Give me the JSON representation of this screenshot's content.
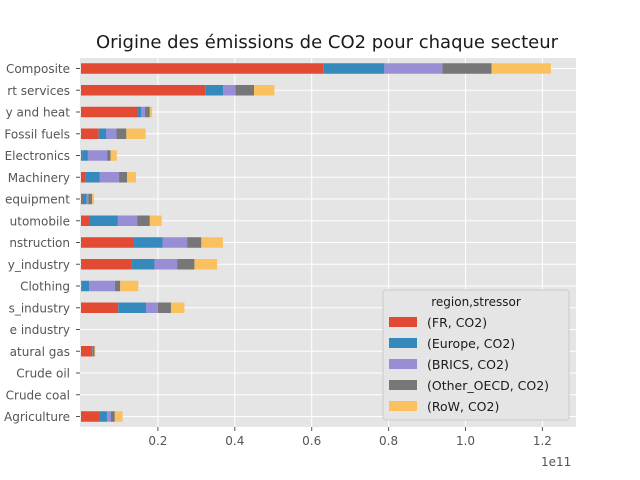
{
  "colors": {
    "plot_background": "#e5e5e5",
    "grid": "#ffffff",
    "series": [
      "#e24a33",
      "#348abd",
      "#988ed5",
      "#777777",
      "#fbc15e"
    ]
  },
  "chart_data": {
    "type": "bar",
    "orientation": "horizontal",
    "stacked": true,
    "title": "Origine des émissions de CO2 pour chaque secteur",
    "xlabel": "",
    "ylabel": "",
    "x_offset_label": "1e11",
    "xlim": [
      0,
      128000000000.0
    ],
    "xticks": [
      20000000000.0,
      40000000000.0,
      60000000000.0,
      80000000000.0,
      100000000000.0,
      120000000000.0
    ],
    "xtick_labels": [
      "0.2",
      "0.4",
      "0.6",
      "0.8",
      "1.0",
      "1.2"
    ],
    "grid": true,
    "legend": {
      "title": "region,stressor",
      "position": "lower-right"
    },
    "categories": [
      "Agriculture",
      "Crude coal",
      "Crude oil",
      "Natural gas",
      "Extractive industry",
      "Biomass_industry",
      "Clothing",
      "Heavy_industry",
      "Construction",
      "Automobile",
      "Oth transport equipment",
      "Machinery",
      "Electronics",
      "Fossil fuels",
      "Electricity and heat",
      "Transport services",
      "Composite"
    ],
    "category_labels_visible": [
      "Agriculture",
      "Crude coal",
      "Crude oil",
      "atural gas",
      "e industry",
      "s_industry",
      "Clothing",
      "y_industry",
      "nstruction",
      "utomobile",
      "equipment",
      "Machinery",
      "Electronics",
      "Fossil fuels",
      "y and heat",
      "rt services",
      "Composite"
    ],
    "series": [
      {
        "name": "(FR, CO2)",
        "values": [
          4800000000.0,
          0,
          0,
          2600000000.0,
          0,
          9700000000.0,
          200000000.0,
          13100000000.0,
          13800000000.0,
          2200000000.0,
          400000000.0,
          1200000000.0,
          300000000.0,
          4600000000.0,
          14700000000.0,
          32300000000.0,
          63000000000.0
        ]
      },
      {
        "name": "(Europe, CO2)",
        "values": [
          2000000000.0,
          0,
          0,
          300000000.0,
          0,
          7200000000.0,
          1900000000.0,
          6000000000.0,
          7400000000.0,
          7400000000.0,
          1100000000.0,
          3700000000.0,
          1500000000.0,
          2000000000.0,
          1000000000.0,
          4700000000.0,
          15900000000.0
        ]
      },
      {
        "name": "(BRICS, CO2)",
        "values": [
          1000000000.0,
          0,
          0,
          100000000.0,
          0,
          3100000000.0,
          6700000000.0,
          5900000000.0,
          6400000000.0,
          5000000000.0,
          400000000.0,
          5000000000.0,
          5000000000.0,
          2600000000.0,
          900000000.0,
          3200000000.0,
          15100000000.0
        ]
      },
      {
        "name": "(Other_OECD, CO2)",
        "values": [
          1000000000.0,
          0,
          0,
          500000000.0,
          0,
          3400000000.0,
          1400000000.0,
          4500000000.0,
          3700000000.0,
          3300000000.0,
          1000000000.0,
          2100000000.0,
          900000000.0,
          2600000000.0,
          1300000000.0,
          4800000000.0,
          12800000000.0
        ]
      },
      {
        "name": "(RoW, CO2)",
        "values": [
          2000000000.0,
          0,
          0,
          200000000.0,
          0,
          3500000000.0,
          4700000000.0,
          5900000000.0,
          5600000000.0,
          3100000000.0,
          500000000.0,
          2300000000.0,
          1600000000.0,
          5000000000.0,
          600000000.0,
          5300000000.0,
          15400000000.0
        ]
      }
    ]
  }
}
